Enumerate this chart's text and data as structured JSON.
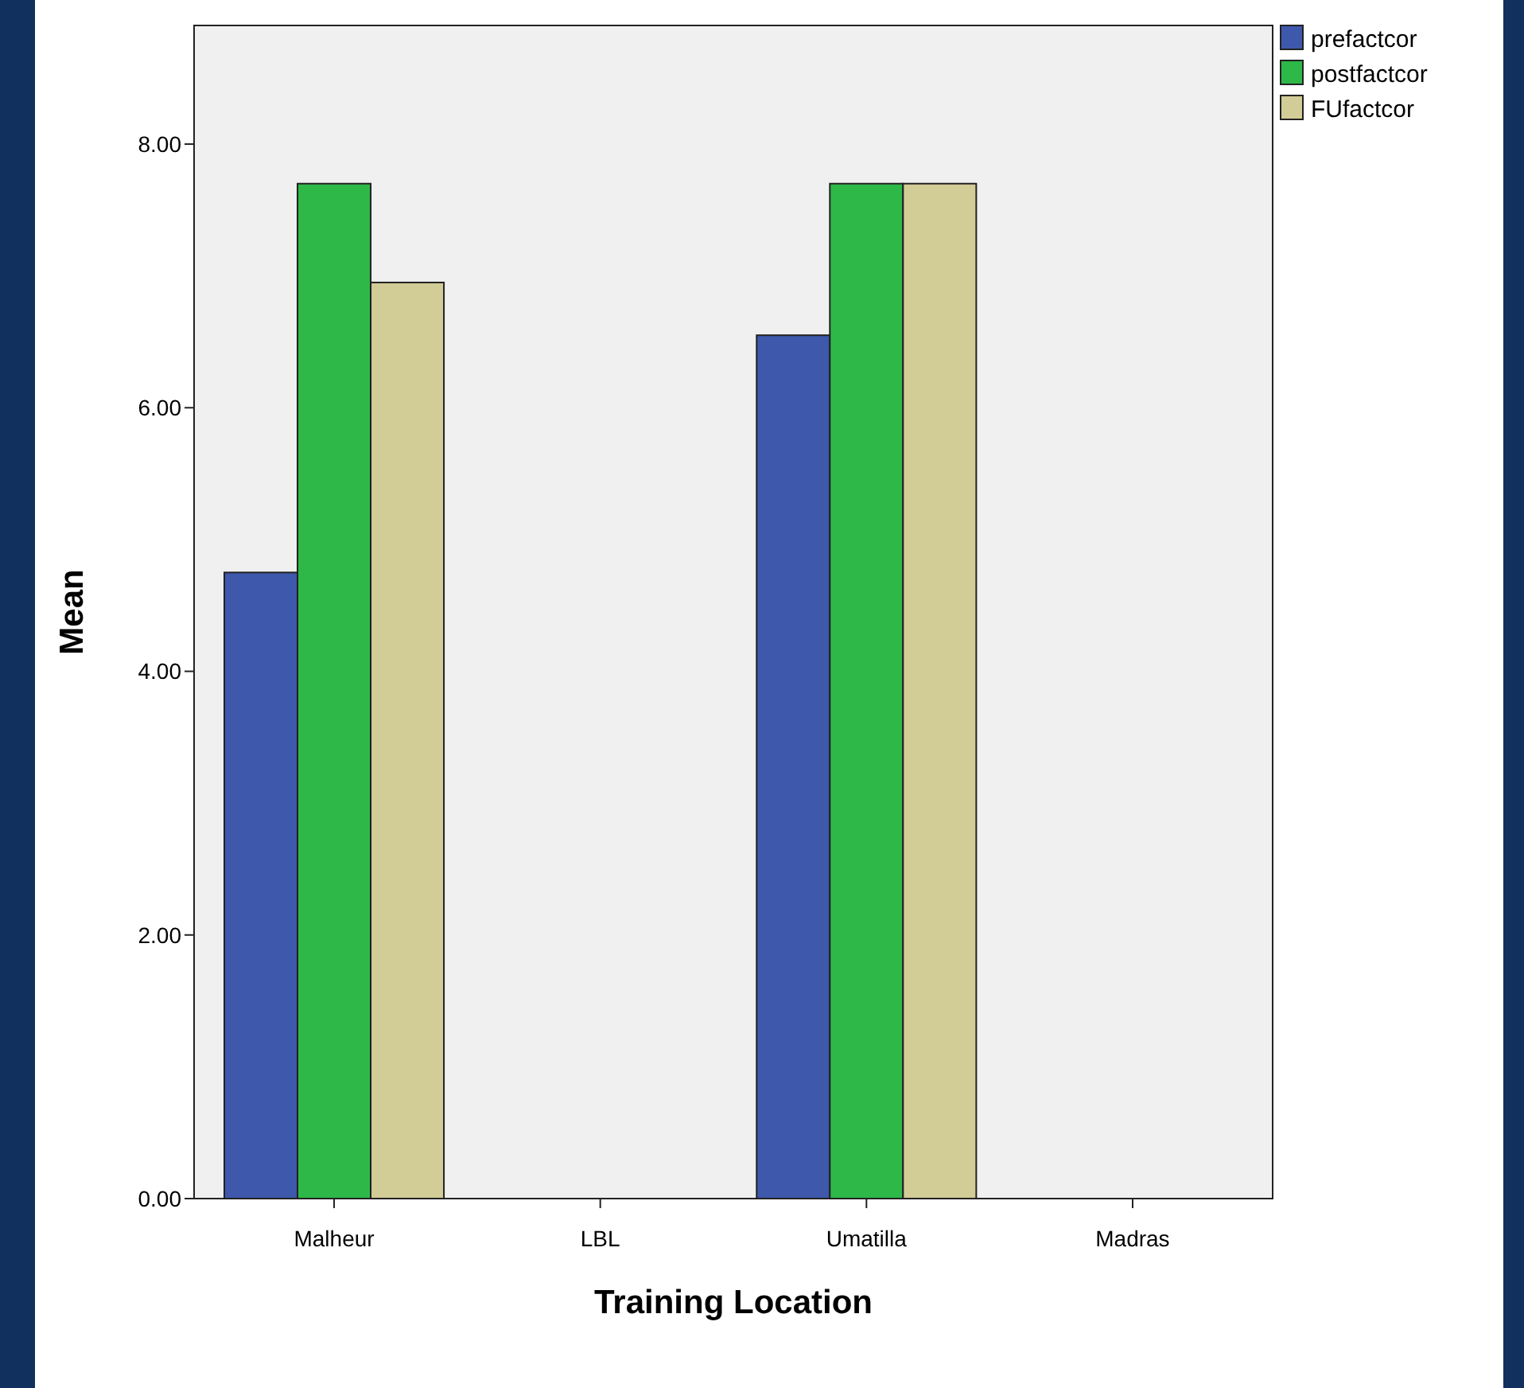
{
  "chart_data": {
    "type": "bar",
    "xlabel": "Training Location",
    "ylabel": "Mean",
    "categories": [
      "Malheur",
      "LBL",
      "Umatilla",
      "Madras"
    ],
    "series": [
      {
        "name": "prefactcor",
        "color": "#3e58ac",
        "values": [
          4.75,
          null,
          6.55,
          null
        ]
      },
      {
        "name": "postfactcor",
        "color": "#2eb848",
        "values": [
          7.7,
          null,
          7.7,
          null
        ]
      },
      {
        "name": "FUfactcor",
        "color": "#d2cc96",
        "values": [
          6.95,
          null,
          7.7,
          null
        ]
      }
    ],
    "ylim": [
      0,
      8.9
    ],
    "yticks": [
      {
        "value": 0,
        "label": "0.00"
      },
      {
        "value": 2,
        "label": "2.00"
      },
      {
        "value": 4,
        "label": "4.00"
      },
      {
        "value": 6,
        "label": "6.00"
      },
      {
        "value": 8,
        "label": "8.00"
      }
    ],
    "grid": false,
    "legend": "top right"
  }
}
